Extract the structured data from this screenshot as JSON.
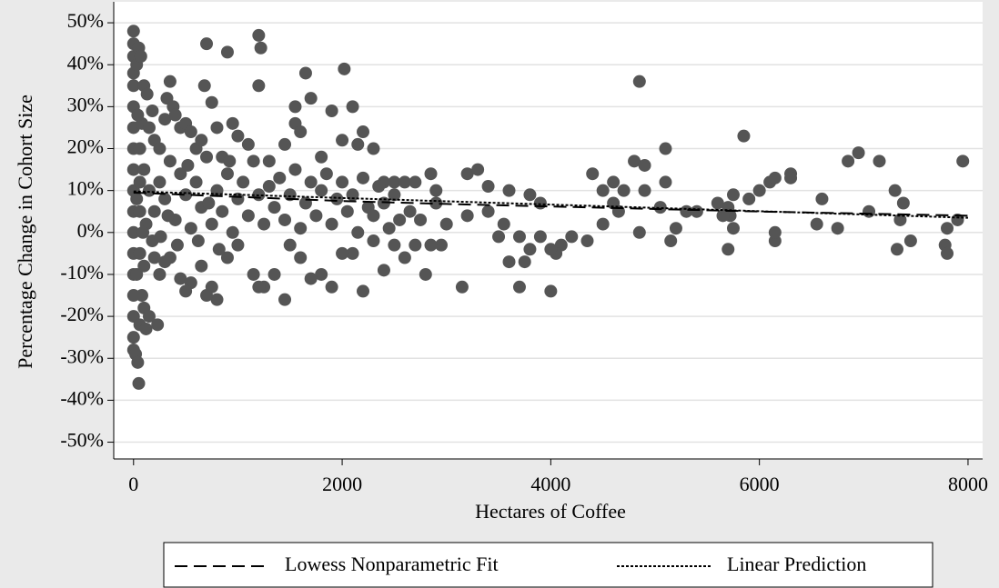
{
  "chart_data": {
    "type": "scatter",
    "xlabel": "Hectares of Coffee",
    "ylabel": "Percentage Change in Cohort Size",
    "xlim": [
      -190,
      8140
    ],
    "ylim": [
      -54,
      55
    ],
    "xticks": [
      0,
      2000,
      4000,
      6000,
      8000
    ],
    "yticks": [
      {
        "value": 50,
        "label": "50%"
      },
      {
        "value": 40,
        "label": "40%"
      },
      {
        "value": 30,
        "label": "30%"
      },
      {
        "value": 20,
        "label": "20%"
      },
      {
        "value": 10,
        "label": "10%"
      },
      {
        "value": 0,
        "label": "0%"
      },
      {
        "value": -10,
        "label": "-10%"
      },
      {
        "value": -20,
        "label": "-20%"
      },
      {
        "value": -30,
        "label": "-30%"
      },
      {
        "value": -40,
        "label": "-40%"
      },
      {
        "value": -50,
        "label": "-50%"
      }
    ],
    "grid": true,
    "legend": "bottom",
    "series": [
      {
        "style": "points",
        "color": "#555555",
        "x": [
          0,
          0,
          0,
          0,
          0,
          0,
          0,
          0,
          0,
          0,
          0,
          0,
          0,
          0,
          0,
          0,
          0,
          0,
          20,
          40,
          50,
          60,
          30,
          50,
          70,
          80,
          100,
          120,
          150,
          230,
          100,
          130,
          80,
          150,
          180,
          200,
          250,
          300,
          320,
          350,
          380,
          400,
          450,
          500,
          550,
          600,
          650,
          700,
          680,
          750,
          800,
          850,
          900,
          950,
          1000,
          1100,
          1200,
          1220,
          1200,
          1300,
          1450,
          1550,
          1550,
          1600,
          1650,
          1700,
          1800,
          1900,
          2000,
          2020,
          2100,
          2150,
          2200,
          2300,
          2400,
          2500,
          2600,
          2700,
          2850,
          2900,
          3200,
          3300,
          3400,
          3600,
          3800,
          3900,
          4400,
          4500,
          4600,
          4700,
          4800,
          4850,
          4900,
          5100,
          5100,
          5300,
          5400,
          5600,
          5700,
          5750,
          5850,
          5900,
          6000,
          6100,
          6150,
          6300,
          6300,
          6600,
          6850,
          6950,
          7050,
          7150,
          7300,
          7380,
          7950,
          7900,
          7800,
          7780,
          7800,
          7450,
          7320,
          7350,
          6550,
          6750,
          6150,
          6150,
          5750,
          5720,
          5700,
          5650,
          5200,
          5150,
          5050,
          4900,
          4850,
          4650,
          4600,
          4500,
          4350,
          4200,
          4100,
          4050,
          4000,
          4000,
          3900,
          3800,
          3750,
          3700,
          3700,
          3600,
          3550,
          3500,
          3400,
          3200,
          3150,
          2950,
          2850,
          2800,
          2700,
          2600,
          2500,
          2400,
          2300,
          2200,
          2100,
          2000,
          1900,
          1800,
          1700,
          1600,
          1500,
          1450,
          1350,
          1250,
          1200,
          1150,
          1000,
          900,
          800,
          750,
          700,
          650,
          550,
          500,
          450,
          350,
          300,
          250,
          200,
          100,
          150,
          200,
          250,
          300,
          350,
          400,
          450,
          500,
          550,
          600,
          650,
          700,
          750,
          800,
          850,
          900,
          950,
          1000,
          1050,
          1100,
          1150,
          1200,
          1250,
          1300,
          1350,
          1400,
          1450,
          1500,
          1550,
          1600,
          1650,
          1700,
          1750,
          1800,
          1850,
          1900,
          1950,
          2000,
          2050,
          2100,
          2150,
          2200,
          2250,
          2300,
          2350,
          2400,
          2450,
          2500,
          2550,
          2650,
          2750,
          2900,
          3000,
          120,
          180,
          260,
          330,
          420,
          520,
          620,
          720,
          820,
          920,
          60,
          60,
          60,
          60,
          30,
          30,
          90,
          100,
          40
        ],
        "values": [
          48,
          45,
          42,
          38,
          35,
          30,
          25,
          20,
          15,
          10,
          5,
          0,
          -5,
          -10,
          -15,
          -20,
          -25,
          -28,
          -29,
          -31,
          -36,
          -22,
          40,
          44,
          42,
          -15,
          -18,
          -23,
          -20,
          -22,
          35,
          33,
          26,
          25,
          29,
          22,
          20,
          27,
          32,
          36,
          30,
          28,
          25,
          26,
          24,
          20,
          22,
          45,
          35,
          31,
          25,
          18,
          43,
          26,
          23,
          21,
          47,
          44,
          35,
          17,
          21,
          30,
          26,
          24,
          38,
          32,
          18,
          29,
          22,
          39,
          30,
          21,
          24,
          20,
          12,
          12,
          12,
          12,
          14,
          10,
          14,
          15,
          11,
          10,
          9,
          7,
          14,
          10,
          12,
          10,
          17,
          36,
          16,
          20,
          12,
          5,
          5,
          7,
          6,
          9,
          23,
          8,
          10,
          12,
          13,
          14,
          13,
          8,
          17,
          19,
          5,
          17,
          10,
          7,
          17,
          3,
          1,
          -3,
          -5,
          -2,
          -4,
          3,
          2,
          1,
          -2,
          0,
          1,
          4,
          -4,
          4,
          1,
          -2,
          6,
          10,
          0,
          5,
          7,
          2,
          -2,
          -1,
          -3,
          -5,
          -4,
          -14,
          -1,
          -4,
          -7,
          -13,
          -1,
          -7,
          2,
          -1,
          5,
          4,
          -13,
          -3,
          -3,
          -10,
          -3,
          -6,
          -3,
          -9,
          -2,
          -14,
          -5,
          -5,
          -13,
          -10,
          -11,
          -6,
          -3,
          -16,
          -10,
          -13,
          -13,
          -10,
          -3,
          -6,
          -16,
          -13,
          -15,
          -8,
          -12,
          -14,
          -11,
          -6,
          -7,
          -10,
          -6,
          15,
          10,
          5,
          12,
          8,
          17,
          3,
          14,
          9,
          1,
          12,
          6,
          18,
          2,
          10,
          5,
          14,
          0,
          8,
          12,
          4,
          17,
          9,
          2,
          11,
          6,
          13,
          3,
          9,
          15,
          1,
          7,
          12,
          4,
          10,
          14,
          2,
          8,
          12,
          5,
          9,
          0,
          13,
          6,
          4,
          11,
          7,
          1,
          9,
          3,
          5,
          3,
          7,
          2,
          2,
          -2,
          -1,
          4,
          -3,
          16,
          -2,
          7,
          -4,
          17,
          12,
          5,
          -5,
          20,
          8,
          -10,
          0,
          -8,
          28
        ]
      },
      {
        "name": "Lowess Nonparametric Fit",
        "style": "dashed",
        "color": "#000000",
        "x": [
          0,
          1000,
          2000,
          3000,
          4000,
          5000,
          6000,
          7000,
          8000
        ],
        "values": [
          9.5,
          8.5,
          7.5,
          6.8,
          6.2,
          5.6,
          5.0,
          4.5,
          4.0
        ]
      },
      {
        "name": "Linear Prediction",
        "style": "dotted",
        "color": "#000000",
        "x": [
          0,
          8000
        ],
        "values": [
          9.8,
          3.5
        ]
      }
    ]
  }
}
